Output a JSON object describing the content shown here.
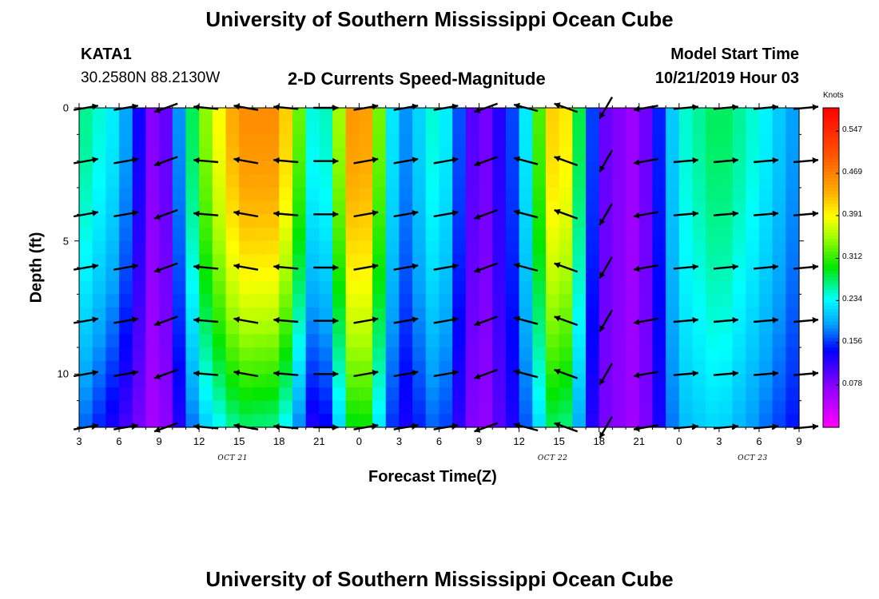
{
  "page": {
    "title_top": "University of Southern Mississippi Ocean Cube",
    "title_bottom": "University of Southern Mississippi Ocean Cube",
    "station": "KATA1",
    "coords": "30.2580N 88.2130W",
    "chart_title": "2-D Currents Speed-Magnitude",
    "model_label": "Model Start Time",
    "model_time": "10/21/2019 Hour 03"
  },
  "chart_data": {
    "type": "heatmap",
    "title": "2-D Currents Speed-Magnitude",
    "xlabel": "Forecast Time(Z)",
    "ylabel": "Depth (ft)",
    "x_tick_labels": [
      "3",
      "6",
      "9",
      "12",
      "15",
      "18",
      "21",
      "0",
      "3",
      "6",
      "9",
      "12",
      "15",
      "18",
      "21",
      "0",
      "3",
      "6",
      "9"
    ],
    "date_labels": [
      "OCT 21",
      "OCT 22",
      "OCT 23"
    ],
    "y_ticks": [
      0,
      5,
      10
    ],
    "y_tick_labels": [
      "0",
      "5",
      "10"
    ],
    "ylim": [
      0,
      12
    ],
    "colorbar": {
      "unit": "Knots",
      "ticks": [
        0.078,
        0.156,
        0.234,
        0.312,
        0.391,
        0.469,
        0.547
      ],
      "tick_labels": [
        "0.078",
        "0.156",
        "0.234",
        "0.312",
        "0.391",
        "0.469",
        "0.547"
      ],
      "range": [
        0.0,
        0.59
      ]
    },
    "depth_levels_ft": [
      0,
      2,
      4,
      6,
      8,
      10,
      12
    ],
    "forecast_hours": [
      3,
      6,
      9,
      12,
      15,
      18,
      21,
      24,
      27,
      30,
      33,
      36,
      39,
      42,
      45,
      48,
      51,
      54,
      57
    ],
    "speed_surface_knots": [
      0.27,
      0.22,
      0.05,
      0.32,
      0.46,
      0.46,
      0.2,
      0.5,
      0.17,
      0.26,
      0.07,
      0.18,
      0.46,
      0.1,
      0.06,
      0.24,
      0.28,
      0.24,
      0.18
    ],
    "speed_bottom_knots": [
      0.18,
      0.12,
      0.05,
      0.2,
      0.27,
      0.26,
      0.1,
      0.33,
      0.12,
      0.18,
      0.06,
      0.14,
      0.3,
      0.09,
      0.06,
      0.2,
      0.22,
      0.18,
      0.14
    ],
    "arrow_directions_deg": [
      10,
      10,
      -160,
      175,
      170,
      175,
      0,
      10,
      10,
      10,
      -160,
      165,
      160,
      -120,
      -170,
      5,
      5,
      5,
      5
    ]
  }
}
